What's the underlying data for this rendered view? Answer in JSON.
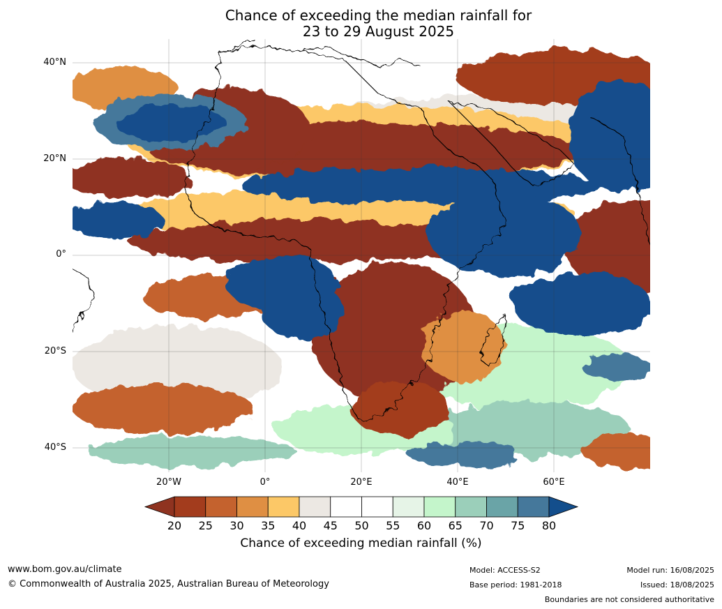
{
  "title": {
    "line1": "Chance of exceeding the median rainfall for",
    "line2": "23 to 29 August 2025"
  },
  "map": {
    "lat_labels": [
      "40°N",
      "20°N",
      "0°",
      "20°S",
      "40°S"
    ],
    "lon_labels": [
      "20°W",
      "0°",
      "20°E",
      "40°E",
      "60°E"
    ],
    "extent": {
      "lon_min": -40,
      "lon_max": 80,
      "lat_min": -45,
      "lat_max": 45
    }
  },
  "colorbar": {
    "ticks": [
      "20",
      "25",
      "30",
      "35",
      "40",
      "45",
      "50",
      "55",
      "60",
      "65",
      "70",
      "75",
      "80"
    ],
    "colors": [
      "#8f3320",
      "#a33c1d",
      "#c4622e",
      "#df8f43",
      "#fcc867",
      "#ece8e3",
      "#ffffff",
      "#ffffff",
      "#e6f4e7",
      "#c4f5cb",
      "#9bcfba",
      "#6aa4a7",
      "#45789b",
      "#134e8c"
    ],
    "label": "Chance of exceeding median rainfall (%)"
  },
  "footer": {
    "website": "www.bom.gov.au/climate",
    "copyright": "© Commonwealth of Australia 2025, Australian Bureau of Meteorology",
    "model": "Model: ACCESS-S2",
    "base_period": "Base period: 1981-2018",
    "model_run": "Model run: 16/08/2025",
    "issued": "Issued: 18/08/2025",
    "disclaimer": "Boundaries are not considered authoritative"
  }
}
